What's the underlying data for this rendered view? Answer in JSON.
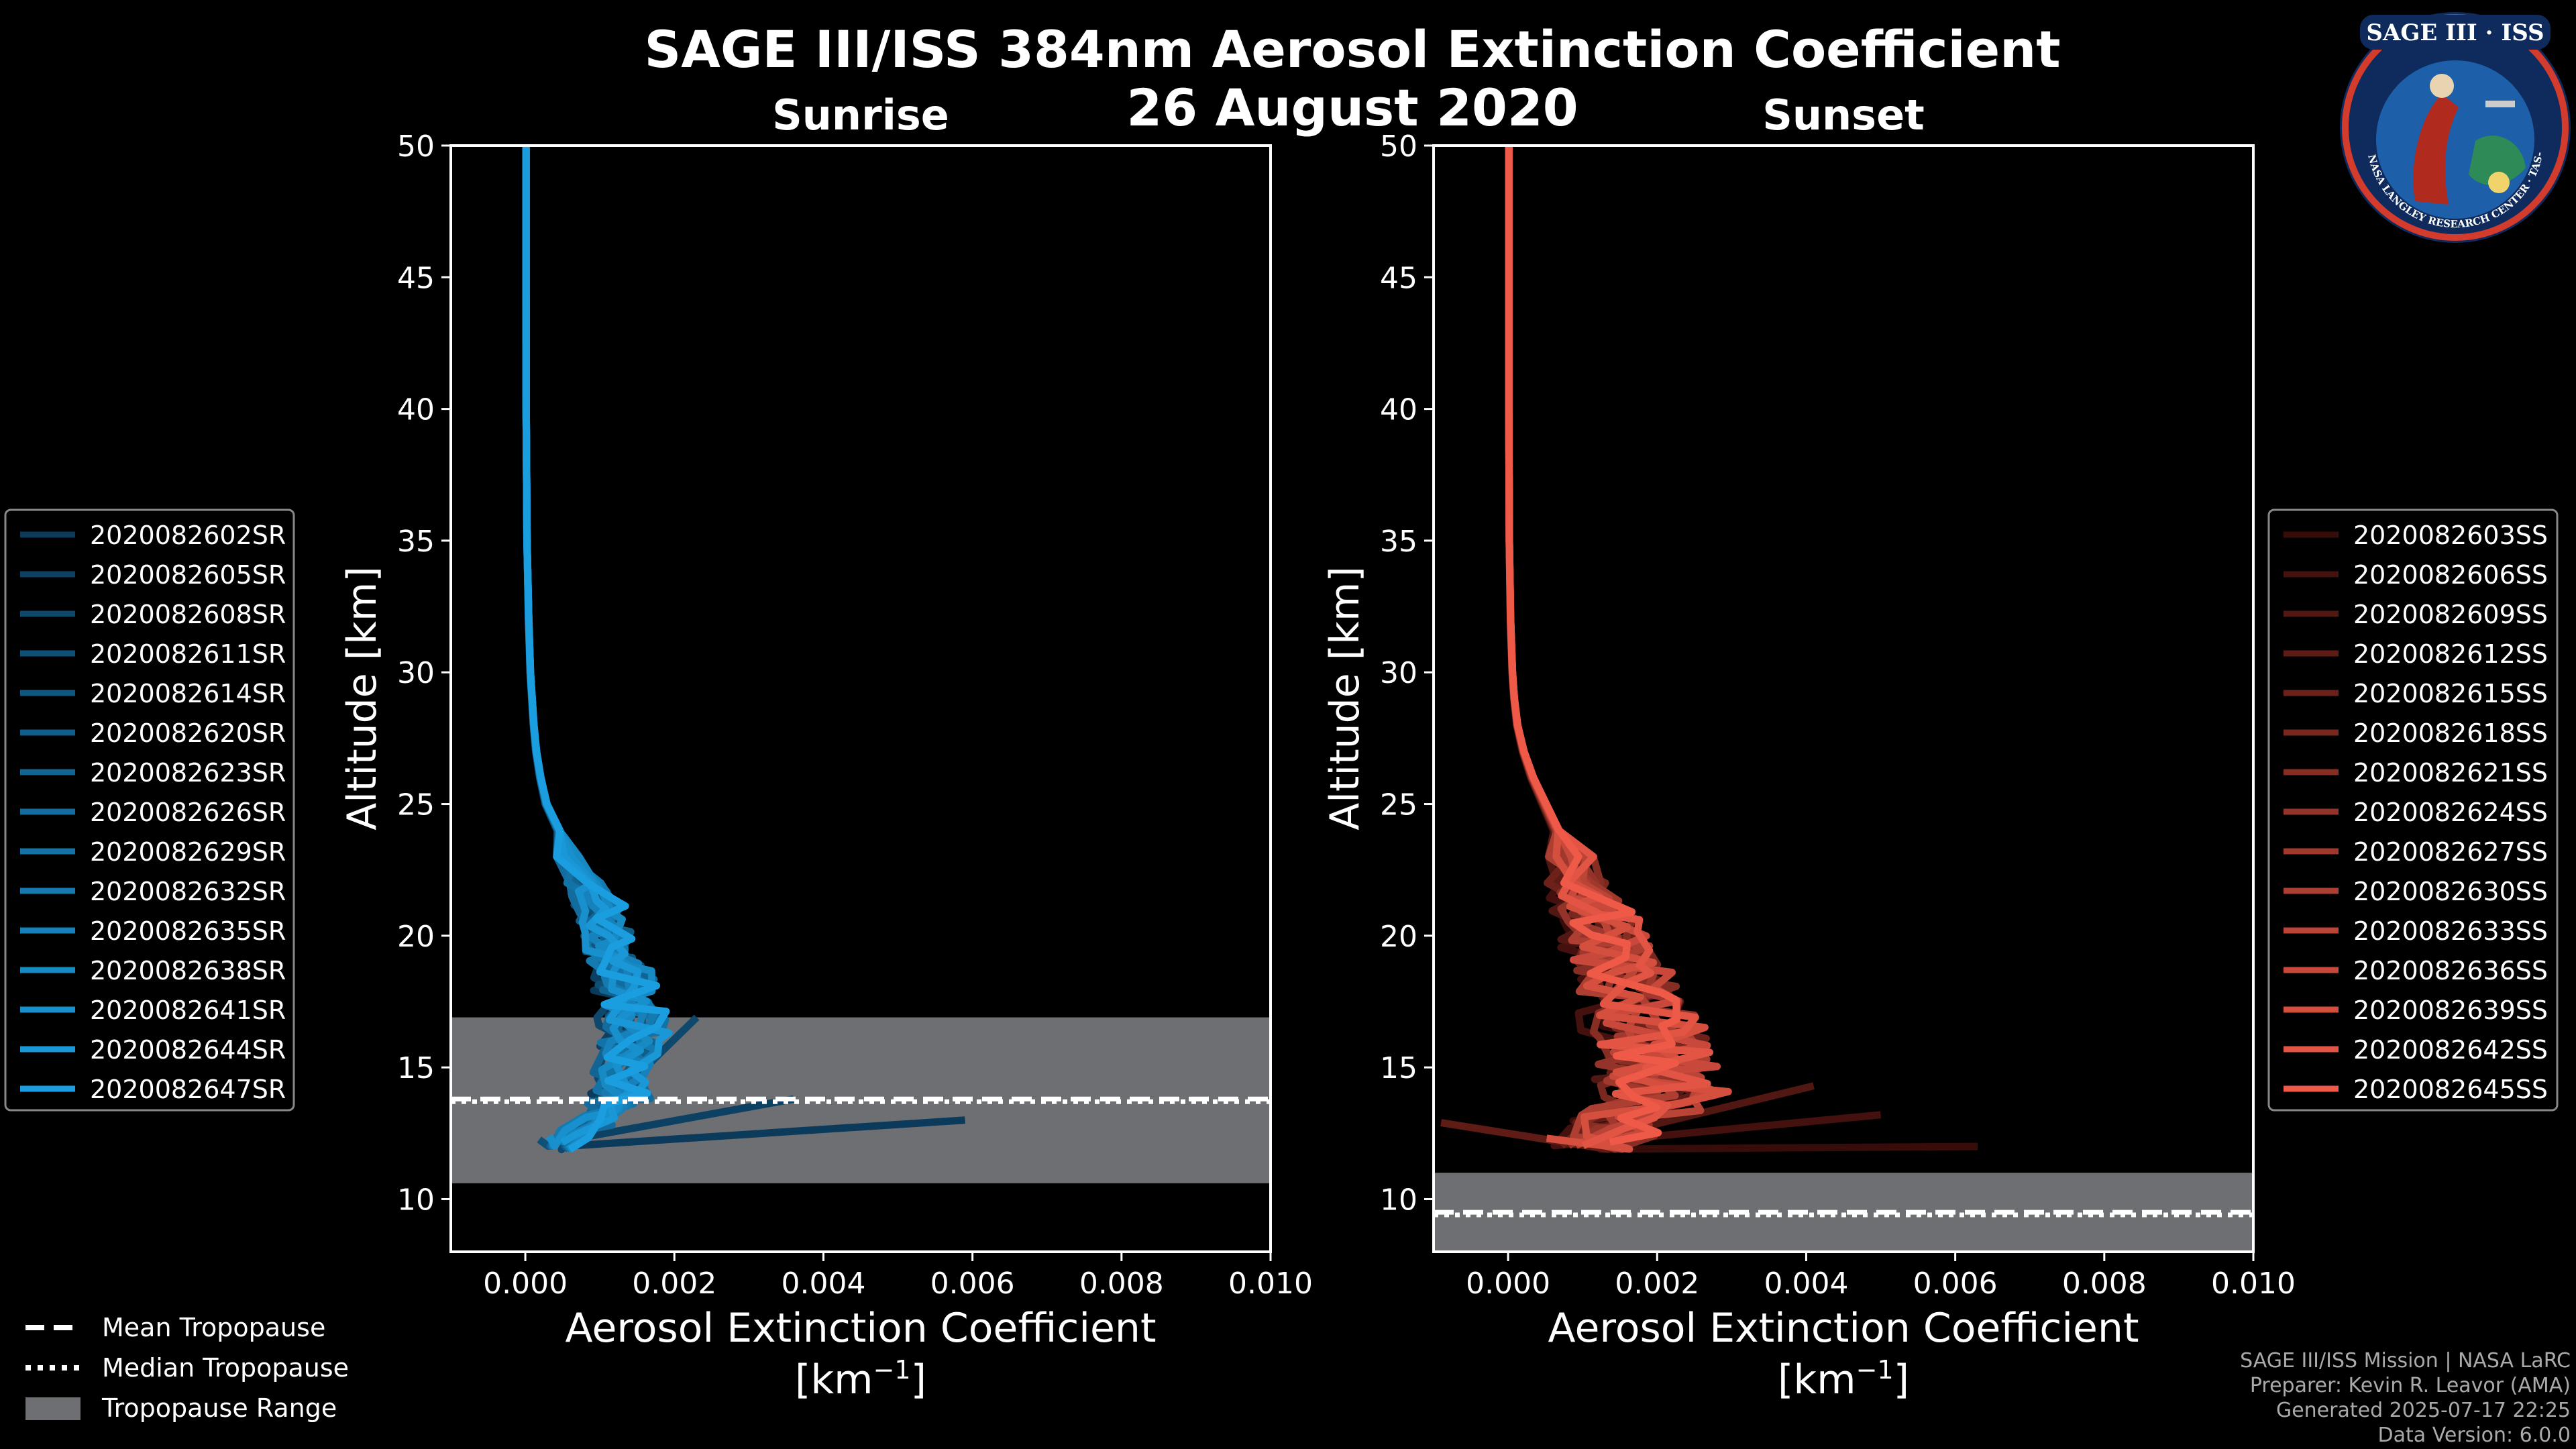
{
  "figure": {
    "title_line1": "SAGE III/ISS 384nm Aerosol Extinction Coefficient",
    "title_line2": "26 August 2020",
    "credits": [
      "SAGE III/ISS Mission | NASA LaRC",
      "Preparer: Kevin R. Leavor (AMA)",
      "Generated 2025-07-17 22:25",
      "Data Version: 6.0.0"
    ],
    "logo": {
      "name": "SAGE III · ISS",
      "ring_text": "BALL · NASA LANGLEY RESEARCH CENTER · TAS-I · ESA"
    },
    "bottom_legend": [
      {
        "label": "Mean Tropopause",
        "style": "dashed"
      },
      {
        "label": "Median Tropopause",
        "style": "dotted"
      },
      {
        "label": "Tropopause Range",
        "style": "patch"
      }
    ],
    "colors": {
      "background": "#000000",
      "sunrise": "#1a9ee0",
      "sunset": "#ef5a48",
      "tropopause_range": "#6e6f73"
    }
  },
  "chart_data": [
    {
      "type": "line",
      "title": "Sunrise",
      "xlabel": "Aerosol Extinction Coefficient",
      "xlabel_units_base": "[km",
      "xlabel_units_exp": "−1",
      "xlabel_units_end": "]",
      "ylabel": "Altitude [km]",
      "xlim": [
        -0.001,
        0.01
      ],
      "ylim": [
        8,
        50
      ],
      "xticks": [
        "0.000",
        "0.002",
        "0.004",
        "0.006",
        "0.008",
        "0.010"
      ],
      "yticks": [
        "10",
        "15",
        "20",
        "25",
        "30",
        "35",
        "40",
        "45",
        "50"
      ],
      "tropopause": {
        "mean": 13.8,
        "median": 13.7,
        "min": 10.6,
        "max": 16.9
      },
      "base_profile": {
        "altitude": [
          12,
          12.5,
          13,
          13.5,
          14,
          14.5,
          15,
          15.5,
          16,
          16.5,
          17,
          17.5,
          18,
          18.5,
          19,
          19.5,
          20,
          20.5,
          21,
          21.5,
          22,
          23,
          24,
          25,
          26,
          27,
          28,
          29,
          30,
          32,
          35,
          40,
          45,
          50
        ],
        "extinction": [
          0.0004,
          0.0006,
          0.0008,
          0.001,
          0.0012,
          0.0011,
          0.0012,
          0.0013,
          0.0013,
          0.0013,
          0.0013,
          0.0012,
          0.0012,
          0.0012,
          0.0011,
          0.001,
          0.001,
          0.0009,
          0.0009,
          0.0008,
          0.0007,
          0.0005,
          0.0004,
          0.00025,
          0.00018,
          0.00013,
          0.0001,
          8e-05,
          6e-05,
          4e-05,
          2e-05,
          1e-05,
          5e-06,
          2e-06
        ]
      },
      "series": [
        {
          "name": "2020082602SR"
        },
        {
          "name": "2020082605SR"
        },
        {
          "name": "2020082608SR"
        },
        {
          "name": "2020082611SR"
        },
        {
          "name": "2020082614SR"
        },
        {
          "name": "2020082620SR"
        },
        {
          "name": "2020082623SR"
        },
        {
          "name": "2020082626SR"
        },
        {
          "name": "2020082629SR"
        },
        {
          "name": "2020082632SR"
        },
        {
          "name": "2020082635SR"
        },
        {
          "name": "2020082638SR"
        },
        {
          "name": "2020082641SR"
        },
        {
          "name": "2020082644SR"
        },
        {
          "name": "2020082647SR"
        }
      ],
      "spikes": [
        {
          "altitude": 13.0,
          "value": 0.0059
        },
        {
          "altitude": 13.8,
          "value": 0.0036
        },
        {
          "altitude": 16.9,
          "value": 0.0023
        }
      ],
      "color_dark": "#0b3350",
      "color_light": "#1a9ee0"
    },
    {
      "type": "line",
      "title": "Sunset",
      "xlabel": "Aerosol Extinction Coefficient",
      "xlabel_units_base": "[km",
      "xlabel_units_exp": "−1",
      "xlabel_units_end": "]",
      "ylabel": "Altitude [km]",
      "xlim": [
        -0.001,
        0.01
      ],
      "ylim": [
        8,
        50
      ],
      "xticks": [
        "0.000",
        "0.002",
        "0.004",
        "0.006",
        "0.008",
        "0.010"
      ],
      "yticks": [
        "10",
        "15",
        "20",
        "25",
        "30",
        "35",
        "40",
        "45",
        "50"
      ],
      "tropopause": {
        "mean": 9.5,
        "median": 9.4,
        "min": 8.0,
        "max": 11.0
      },
      "base_profile": {
        "altitude": [
          12,
          12.5,
          13,
          13.5,
          14,
          14.5,
          15,
          15.5,
          16,
          16.5,
          17,
          17.5,
          18,
          18.5,
          19,
          19.5,
          20,
          20.5,
          21,
          21.5,
          22,
          23,
          24,
          25,
          26,
          27,
          28,
          29,
          30,
          32,
          35,
          40,
          45,
          50
        ],
        "extinction": [
          0.0014,
          0.0018,
          0.002,
          0.0023,
          0.0025,
          0.0026,
          0.0025,
          0.0024,
          0.0024,
          0.0023,
          0.0022,
          0.0021,
          0.002,
          0.0019,
          0.0018,
          0.0017,
          0.0016,
          0.0015,
          0.0014,
          0.0013,
          0.0012,
          0.001,
          0.0008,
          0.0006,
          0.0004,
          0.00025,
          0.00015,
          0.0001,
          7e-05,
          4e-05,
          2e-05,
          1e-05,
          5e-06,
          2e-06
        ]
      },
      "series": [
        {
          "name": "2020082603SS"
        },
        {
          "name": "2020082606SS"
        },
        {
          "name": "2020082609SS"
        },
        {
          "name": "2020082612SS"
        },
        {
          "name": "2020082615SS"
        },
        {
          "name": "2020082618SS"
        },
        {
          "name": "2020082621SS"
        },
        {
          "name": "2020082624SS"
        },
        {
          "name": "2020082627SS"
        },
        {
          "name": "2020082630SS"
        },
        {
          "name": "2020082633SS"
        },
        {
          "name": "2020082636SS"
        },
        {
          "name": "2020082639SS"
        },
        {
          "name": "2020082642SS"
        },
        {
          "name": "2020082645SS"
        }
      ],
      "spikes": [
        {
          "altitude": 12.0,
          "value": 0.0063
        },
        {
          "altitude": 13.2,
          "value": 0.005
        },
        {
          "altitude": 14.3,
          "value": 0.0041
        },
        {
          "altitude": 12.9,
          "value": -0.0009
        }
      ],
      "color_dark": "#2a0605",
      "color_light": "#ef5a48"
    }
  ]
}
